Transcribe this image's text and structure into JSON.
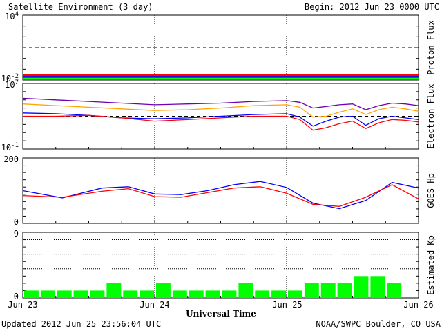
{
  "header": {
    "title": "Satellite Environment (3 day)",
    "begin": "Begin:  2012 Jun 23 0000 UTC"
  },
  "footer": {
    "updated": "Updated 2012 Jun 25 23:56:04 UTC",
    "credit": "NOAA/SWPC Boulder, CO USA"
  },
  "xaxis": {
    "label": "Universal Time",
    "ticks": [
      "Jun 23",
      "Jun 24",
      "Jun 25",
      "Jun 26"
    ]
  },
  "colors": {
    "red": "#ff0000",
    "blue": "#0000ff",
    "green": "#00ff00",
    "orange": "#ffa500",
    "purple": "#7000b0"
  },
  "chart_data": [
    {
      "type": "line",
      "ylabel": "Proton Flux",
      "log": true,
      "ylim_exp": [
        -2,
        4
      ],
      "y_ticks": [
        {
          "base": "10",
          "exp": "4",
          "v": 4
        },
        {
          "base": "10",
          "exp": "-2",
          "v": -2
        }
      ],
      "threshold_exp": 1,
      "x_days": [
        0,
        0.25,
        0.5,
        0.75,
        1,
        1.25,
        1.5,
        1.75,
        2,
        2.25,
        2.5,
        2.75,
        3
      ],
      "series": [
        {
          "color": "red",
          "values_exp": [
            -1.55,
            -1.55,
            -1.55,
            -1.55,
            -1.55,
            -1.55,
            -1.55,
            -1.55,
            -1.55,
            -1.55,
            -1.55,
            -1.55,
            -1.55
          ]
        },
        {
          "color": "blue",
          "values_exp": [
            -1.72,
            -1.72,
            -1.72,
            -1.72,
            -1.72,
            -1.72,
            -1.72,
            -1.72,
            -1.72,
            -1.72,
            -1.72,
            -1.72,
            -1.72
          ]
        },
        {
          "color": "green",
          "values_exp": [
            -1.88,
            -1.88,
            -1.88,
            -1.88,
            -1.88,
            -1.88,
            -1.88,
            -1.88,
            -1.88,
            -1.88,
            -1.88,
            -1.88,
            -1.88
          ]
        }
      ]
    },
    {
      "type": "line",
      "ylabel": "Electron Flux",
      "log": true,
      "ylim_exp": [
        -1,
        7
      ],
      "y_ticks": [
        {
          "base": "10",
          "exp": "7",
          "v": 7
        },
        {
          "base": "10",
          "exp": "-1",
          "v": -1
        }
      ],
      "threshold_exp": 3,
      "x_days": [
        0,
        0.25,
        0.5,
        0.75,
        1,
        1.25,
        1.5,
        1.75,
        2,
        2.1,
        2.2,
        2.3,
        2.4,
        2.5,
        2.6,
        2.7,
        2.8,
        2.9,
        3
      ],
      "series": [
        {
          "color": "purple",
          "values_exp": [
            5.2,
            5.0,
            4.8,
            4.6,
            4.4,
            4.5,
            4.6,
            4.8,
            4.9,
            4.7,
            4.0,
            4.2,
            4.4,
            4.5,
            3.8,
            4.3,
            4.6,
            4.5,
            4.3
          ]
        },
        {
          "color": "orange",
          "values_exp": [
            4.5,
            4.3,
            4.1,
            3.9,
            3.7,
            3.8,
            4.0,
            4.3,
            4.4,
            4.1,
            2.9,
            3.0,
            3.5,
            3.9,
            3.2,
            3.8,
            4.1,
            3.9,
            3.6
          ]
        },
        {
          "color": "blue",
          "values_exp": [
            3.4,
            3.3,
            3.1,
            2.8,
            2.7,
            2.8,
            3.0,
            3.2,
            3.3,
            2.9,
            1.8,
            2.4,
            2.9,
            3.0,
            1.9,
            2.7,
            3.0,
            2.8,
            2.6
          ]
        },
        {
          "color": "red",
          "values_exp": [
            3.0,
            3.0,
            3.1,
            2.8,
            2.4,
            2.6,
            2.8,
            3.0,
            3.0,
            2.6,
            1.3,
            1.6,
            2.1,
            2.4,
            1.5,
            2.2,
            2.6,
            2.5,
            2.3
          ]
        }
      ]
    },
    {
      "type": "line",
      "ylabel": "GOES Hp",
      "log": false,
      "ylim": [
        0,
        200
      ],
      "y_ticks": [
        {
          "label": "200",
          "v": 200
        },
        {
          "label": "0",
          "v": 0
        }
      ],
      "x_days": [
        0,
        0.3,
        0.6,
        0.8,
        1.0,
        1.2,
        1.4,
        1.6,
        1.8,
        2.0,
        2.2,
        2.4,
        2.6,
        2.8,
        3.0
      ],
      "series": [
        {
          "color": "blue",
          "values": [
            100,
            78,
            108,
            112,
            90,
            88,
            100,
            118,
            128,
            110,
            62,
            45,
            70,
            125,
            108
          ]
        },
        {
          "color": "red",
          "values": [
            85,
            80,
            98,
            106,
            82,
            80,
            94,
            108,
            112,
            92,
            58,
            52,
            80,
            118,
            75
          ]
        }
      ]
    },
    {
      "type": "bar",
      "ylabel": "Estimated Kp",
      "ylim": [
        0,
        9
      ],
      "y_ticks": [
        {
          "label": "9",
          "v": 9
        },
        {
          "label": "0",
          "v": 0
        }
      ],
      "gridlines": [
        4,
        6,
        8
      ],
      "color": "green",
      "values": [
        1,
        1,
        1,
        1,
        1,
        2,
        1,
        1,
        2,
        1,
        1,
        1,
        1,
        2,
        1,
        1,
        1,
        2,
        2,
        2,
        3,
        3,
        2,
        0
      ]
    }
  ]
}
